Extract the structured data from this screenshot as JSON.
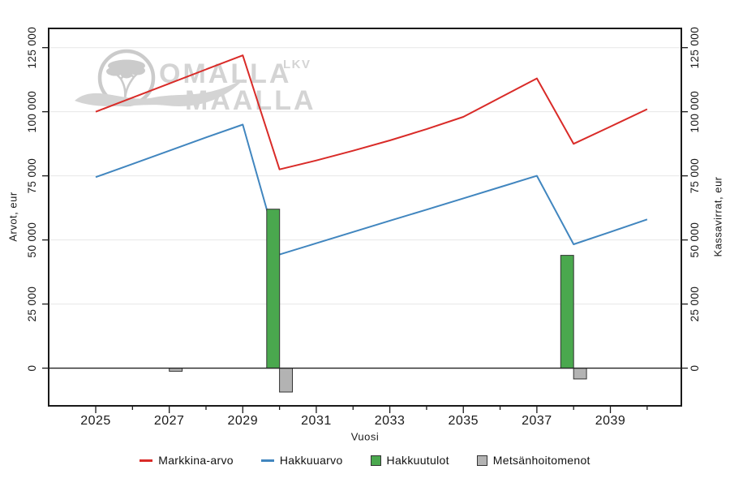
{
  "watermark": {
    "line1": "OMALLA",
    "line2": "MAALLA",
    "suffix": "LKV",
    "color": "#d4d4d4",
    "tree_color": "#cbcbcb"
  },
  "axis_titles": {
    "x": "Vuosi",
    "y_left": "Arvot, eur",
    "y_right": "Kassavirrat, eur"
  },
  "chart_data": {
    "type": "combo-line-bar",
    "x": [
      2025,
      2026,
      2027,
      2028,
      2029,
      2030,
      2031,
      2032,
      2033,
      2034,
      2035,
      2036,
      2037,
      2038,
      2039,
      2040
    ],
    "series": [
      {
        "name": "Markkina-arvo",
        "type": "line",
        "axis": "left",
        "color": "#d92b28",
        "values": [
          100000,
          105500,
          111000,
          116500,
          122000,
          77500,
          81000,
          84800,
          88800,
          93200,
          98000,
          105500,
          113000,
          87500,
          94200,
          101000
        ]
      },
      {
        "name": "Hakkuuarvo",
        "type": "line",
        "axis": "left",
        "color": "#4186bf",
        "values": [
          74500,
          79600,
          84800,
          90000,
          95000,
          44300,
          48700,
          53100,
          57500,
          61800,
          66200,
          70600,
          75000,
          48300,
          53100,
          58000
        ]
      },
      {
        "name": "Hakkuutulot",
        "type": "bar",
        "axis": "right",
        "color": "#4aa84e",
        "offset": [
          -0.35,
          0
        ],
        "points": {
          "2030": 62000,
          "2038": 44000
        }
      },
      {
        "name": "Metsänhoitomenot",
        "type": "bar",
        "axis": "right",
        "color": "#b3b3b3",
        "offset": [
          0,
          0.35
        ],
        "points": {
          "2027": -1200,
          "2030": -9300,
          "2038": -4200
        }
      }
    ],
    "xlabel": "Vuosi",
    "ylabel_left": "Arvot, eur",
    "ylabel_right": "Kassavirrat, eur",
    "y_ticks": [
      0,
      25000,
      50000,
      75000,
      100000,
      125000
    ],
    "y_tick_labels": [
      "0",
      "25 000",
      "50 000",
      "75 000",
      "100 000",
      "125 000"
    ],
    "x_ticks_labeled": [
      2025,
      2027,
      2029,
      2031,
      2033,
      2035,
      2037,
      2039
    ],
    "xlim": [
      2023.72,
      2040.93
    ],
    "ylim": [
      -14700,
      132500
    ],
    "grid": "horizontal-only",
    "legend_position": "bottom-center",
    "style": {
      "axis_color": "#1a1a1a",
      "grid_color": "#e7e7e7",
      "zero_line_color": "#222222",
      "bar_border_color": "#333333",
      "background": "#ffffff"
    }
  }
}
